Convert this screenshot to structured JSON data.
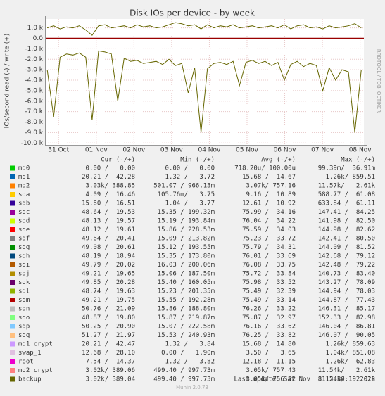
{
  "chart_data": {
    "type": "line",
    "title": "Disk IOs per device - by week",
    "y_label": "IOs/second read (-) / write (+)",
    "x": [
      -0.3,
      -0.13,
      0.04,
      0.21,
      0.38,
      0.55,
      0.72,
      0.89,
      1.06,
      1.23,
      1.4,
      1.57,
      1.74,
      1.91,
      2.08,
      2.25,
      2.42,
      2.59,
      2.76,
      2.93,
      3.1,
      3.27,
      3.44,
      3.61,
      3.78,
      3.95,
      4.12,
      4.29,
      4.46,
      4.63,
      4.8,
      4.97,
      5.14,
      5.31,
      5.48,
      5.65,
      5.82,
      5.99,
      6.16,
      6.33,
      6.5,
      6.67,
      6.84,
      7.01,
      7.18,
      7.35,
      7.52,
      7.69,
      7.86,
      8.03
    ],
    "series": [
      {
        "color": "#666600",
        "values": [
          -3000,
          -7500,
          -1800,
          -1500,
          -1600,
          -1400,
          -1800,
          -7800,
          -1200,
          -1300,
          -1500,
          -6000,
          -1900,
          -2200,
          -2100,
          -2400,
          -2300,
          -2200,
          -2500,
          -2000,
          -2600,
          -2400,
          -5200,
          -2800,
          -9000,
          -2900,
          -2400,
          -2300,
          -2500,
          -2200,
          -4500,
          -2300,
          -2100,
          -2400,
          -2200,
          -2600,
          -2300,
          -4000,
          -2500,
          -2200,
          -2700,
          -2400,
          -2600,
          -5000,
          -2800,
          -4000,
          -3000,
          -3200,
          -9000,
          -3000
        ]
      },
      {
        "color": "#666600",
        "values": [
          1000,
          1200,
          900,
          1100,
          1000,
          1200,
          800,
          300,
          1200,
          1300,
          1000,
          1100,
          1200,
          1000,
          1300,
          1100,
          1200,
          1000,
          1100,
          1300,
          1500,
          1400,
          1200,
          1300,
          900,
          1300,
          1000,
          1200,
          1100,
          1300,
          1000,
          1100,
          1200,
          1000,
          1100,
          1200,
          1000,
          1300,
          900,
          1200,
          1300,
          1000,
          1100,
          900,
          1200,
          1000,
          1100,
          1200,
          1400,
          1000
        ]
      }
    ],
    "xlim": [
      -0.34,
      8.1
    ],
    "xticks": [
      {
        "value": 0,
        "label": "31 Oct"
      },
      {
        "value": 1,
        "label": "01 Nov"
      },
      {
        "value": 2,
        "label": "02 Nov"
      },
      {
        "value": 3,
        "label": "03 Nov"
      },
      {
        "value": 4,
        "label": "04 Nov"
      },
      {
        "value": 5,
        "label": "05 Nov"
      },
      {
        "value": 6,
        "label": "06 Nov"
      },
      {
        "value": 7,
        "label": "07 Nov"
      },
      {
        "value": 8,
        "label": "08 Nov"
      }
    ],
    "ylim": [
      -10250,
      1850
    ],
    "yticks": [
      {
        "value": 1000,
        "label": "1.0 k"
      },
      {
        "value": 0,
        "label": "0.0"
      },
      {
        "value": -1000,
        "label": "-1.0 k"
      },
      {
        "value": -2000,
        "label": "-2.0 k"
      },
      {
        "value": -3000,
        "label": "-3.0 k"
      },
      {
        "value": -4000,
        "label": "-4.0 k"
      },
      {
        "value": -5000,
        "label": "-5.0 k"
      },
      {
        "value": -6000,
        "label": "-6.0 k"
      },
      {
        "value": -7000,
        "label": "-7.0 k"
      },
      {
        "value": -8000,
        "label": "-8.0 k"
      },
      {
        "value": -9000,
        "label": "-9.0 k"
      },
      {
        "value": -10000,
        "label": "-10.0 k"
      }
    ],
    "grid": true
  },
  "legend": {
    "headers": [
      "Cur (-/+)",
      "Min (-/+)",
      "Avg (-/+)",
      "Max (-/+)"
    ],
    "rows": [
      [
        "md0",
        "#00cc00",
        "0.00 /   0.00",
        "0.00 /   0.00",
        "718.20u/ 100.00u",
        "99.39m/  36.91m"
      ],
      [
        "md1",
        "#0066b3",
        "20.21 /  42.28",
        "1.32 /   3.72",
        "15.68 /  14.67",
        "1.26k/ 859.51"
      ],
      [
        "md2",
        "#ff8000",
        "3.03k/ 388.85",
        "501.07 / 966.13m",
        "3.07k/ 757.16",
        "11.57k/   2.61k"
      ],
      [
        "sda",
        "#ffcc00",
        "4.09 /  16.46",
        "105.76m/   3.75",
        "9.16 /  10.89",
        "588.77 /  61.08"
      ],
      [
        "sdb",
        "#330099",
        "15.60 /  16.51",
        "1.04 /   3.77",
        "12.61 /  10.92",
        "633.84 /  61.11"
      ],
      [
        "sdc",
        "#990099",
        "48.64 /  19.53",
        "15.35 / 199.32m",
        "75.99 /  34.16",
        "147.41 /  84.25"
      ],
      [
        "sdd",
        "#ccff00",
        "48.13 /  19.57",
        "15.19 / 193.84m",
        "76.04 /  34.22",
        "141.98 /  82.50"
      ],
      [
        "sde",
        "#ff0000",
        "48.12 /  19.61",
        "15.86 / 228.53m",
        "75.59 /  34.03",
        "144.98 /  82.62"
      ],
      [
        "sdf",
        "#808080",
        "49.64 /  20.41",
        "15.09 / 213.82m",
        "75.23 /  33.72",
        "142.41 /  80.50"
      ],
      [
        "sdg",
        "#008f00",
        "49.08 /  20.61",
        "15.12 / 193.55m",
        "75.79 /  34.31",
        "144.09 /  81.52"
      ],
      [
        "sdh",
        "#00487d",
        "48.19 /  18.94",
        "15.35 / 173.80m",
        "76.01 /  33.69",
        "142.68 /  79.12"
      ],
      [
        "sdi",
        "#b35a00",
        "49.79 /  20.02",
        "16.03 / 200.06m",
        "76.08 /  33.75",
        "142.48 /  79.22"
      ],
      [
        "sdj",
        "#b38f00",
        "49.21 /  19.65",
        "15.06 / 187.50m",
        "75.72 /  33.84",
        "140.73 /  83.40"
      ],
      [
        "sdk",
        "#6b006b",
        "49.85 /  20.28",
        "15.40 / 160.05m",
        "75.98 /  33.52",
        "143.27 /  78.09"
      ],
      [
        "sdl",
        "#8fb300",
        "48.74 /  19.63",
        "15.23 / 201.35m",
        "75.49 /  32.39",
        "144.94 /  78.03"
      ],
      [
        "sdm",
        "#b30000",
        "49.21 /  19.75",
        "15.55 / 192.28m",
        "75.49 /  33.14",
        "144.87 /  77.43"
      ],
      [
        "sdn",
        "#bebebe",
        "50.76 /  21.09",
        "15.86 / 188.80m",
        "76.26 /  33.22",
        "146.31 /  85.17"
      ],
      [
        "sdo",
        "#80ff80",
        "48.87 /  19.80",
        "15.87 / 219.87m",
        "75.87 /  32.97",
        "152.33 /  82.98"
      ],
      [
        "sdp",
        "#80c9ff",
        "50.25 /  20.90",
        "15.07 / 222.58m",
        "76.16 /  33.62",
        "146.04 /  86.81"
      ],
      [
        "sdq",
        "#ffc080",
        "51.27 /  21.97",
        "15.53 / 240.93m",
        "76.25 /  33.82",
        "146.07 /  90.05"
      ],
      [
        "md1_crypt",
        "#cc99ff",
        "20.21 /  42.47",
        "1.32 /   3.84",
        "15.68 /  14.80",
        "1.26k/ 859.63"
      ],
      [
        "swap_1",
        "#e0c0e0",
        "12.68 /  28.10",
        "0.00 /   1.90m",
        "3.50 /   3.65",
        "1.04k/ 851.08"
      ],
      [
        "root",
        "#ee00cc",
        "7.54 /  14.37",
        "1.32 /   3.82",
        "12.18 /  11.15",
        "1.26k/  62.83"
      ],
      [
        "md2_crypt",
        "#ff8080",
        "3.02k/ 389.06",
        "499.40 / 997.73m",
        "3.05k/ 757.43",
        "11.54k/   2.61k"
      ],
      [
        "backup",
        "#666600",
        "3.02k/ 389.04",
        "499.40 / 997.73m",
        "3.05k/ 756.22",
        "11.54k/   2.61k"
      ]
    ]
  },
  "last_update": "Last update: Sat Nov  8 12:30:19 2025",
  "version": "Munin 2.0.73",
  "watermark": "RRDTOOL / TOBI OETIKER"
}
